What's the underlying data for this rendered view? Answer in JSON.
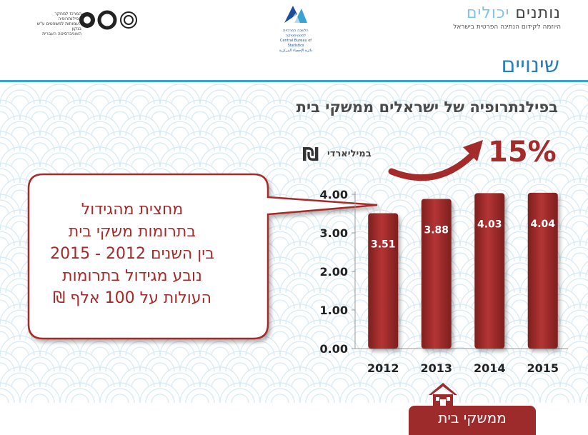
{
  "header": {
    "brand_word1": "יכולים",
    "brand_word2": "נותנים",
    "brand_tagline": "היוזמה לקידום הנתינה הפרטית בישראל",
    "cbs_hebrew": "הלשכה המרכזית לסטטיסטיקה",
    "cbs_english": "Central Bureau of Statistics",
    "cbs_arabic": "دائرة الإحصاء المركزية",
    "partner_line1": "המרכז למחקר הפילנתרופיה",
    "partner_line2": "העמותות למשפטים ע\"ש בנקון",
    "partner_line3": "האוניברסיטה העברית"
  },
  "section_title": "שינויים",
  "subtitle": "בפילנתרופיה של ישראלים ממשקי בית",
  "unit_symbol": "₪",
  "unit_label": "במיליארדי",
  "growth_label": "15%",
  "callout": {
    "line1": "מחצית מהגידול",
    "line2": "בתרומות משקי בית",
    "line3": "בין השנים 2012 - 2015",
    "line4": "נובע מגידול בתרומות",
    "line5": "העולות על 100 אלף ₪"
  },
  "footer_label": "ממשקי בית",
  "colors": {
    "bar": "#a52a2a",
    "accent_blue": "#3aa3d6",
    "pattern": "#d6eaf5"
  },
  "icons": [
    "house-icon",
    "curved-arrow-icon"
  ],
  "chart_data": {
    "type": "bar",
    "categories": [
      "2012",
      "2013",
      "2014",
      "2015"
    ],
    "values": [
      3.51,
      3.88,
      4.03,
      4.04
    ],
    "data_labels": [
      "3.51",
      "3.88",
      "4.03",
      "4.04"
    ],
    "y_ticks": [
      "0.00",
      "1.00",
      "2.00",
      "3.00",
      "4.00"
    ],
    "ylim": [
      0,
      4
    ],
    "ylabel": "במיליארדי ₪",
    "grid": false
  }
}
